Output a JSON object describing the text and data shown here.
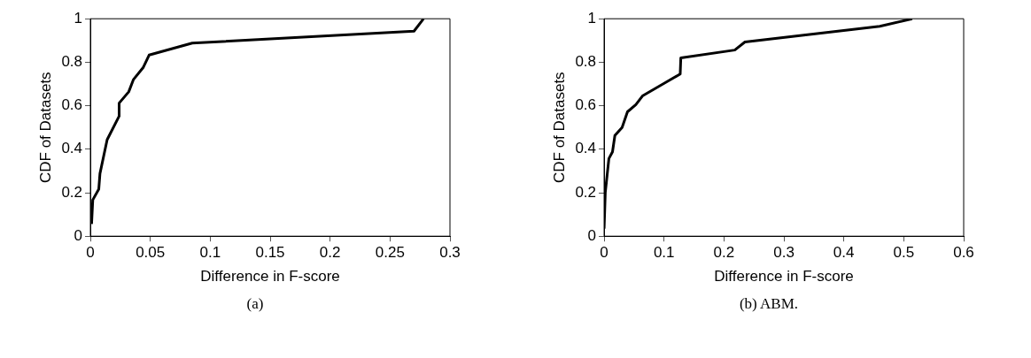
{
  "chart_data": [
    {
      "type": "line",
      "xlabel": "Difference in F-score",
      "ylabel": "CDF of Datasets",
      "xlim": [
        0,
        0.3
      ],
      "xticks": [
        0,
        0.05,
        0.1,
        0.15,
        0.2,
        0.25,
        0.3
      ],
      "ylim": [
        0,
        1
      ],
      "yticks": [
        0,
        0.2,
        0.4,
        0.6,
        0.8,
        1
      ],
      "grid": false,
      "legend": false,
      "marker": "none",
      "line_style": "solid",
      "annotations": [
        "(a)"
      ],
      "series": [
        {
          "color": "#000000",
          "x": [
            0.001,
            0.002,
            0.007,
            0.008,
            0.014,
            0.024,
            0.024,
            0.032,
            0.036,
            0.044,
            0.049,
            0.085,
            0.27,
            0.278
          ],
          "values": [
            0.056,
            0.167,
            0.216,
            0.288,
            0.444,
            0.552,
            0.612,
            0.664,
            0.721,
            0.775,
            0.833,
            0.888,
            0.943,
            1.0
          ]
        }
      ]
    },
    {
      "type": "line",
      "xlabel": "Difference in F-score",
      "ylabel": "CDF of Datasets",
      "xlim": [
        0,
        0.6
      ],
      "xticks": [
        0,
        0.1,
        0.2,
        0.3,
        0.4,
        0.5,
        0.6
      ],
      "ylim": [
        0,
        1
      ],
      "yticks": [
        0,
        0.2,
        0.4,
        0.6,
        0.8,
        1
      ],
      "grid": false,
      "legend": false,
      "marker": "none",
      "line_style": "solid",
      "annotations": [
        "(b) ABM."
      ],
      "series": [
        {
          "color": "#000000",
          "x": [
            0,
            0.002,
            0.008,
            0.014,
            0.018,
            0.03,
            0.039,
            0.053,
            0.064,
            0.104,
            0.127,
            0.128,
            0.218,
            0.235,
            0.46,
            0.514
          ],
          "values": [
            0.035,
            0.202,
            0.357,
            0.388,
            0.463,
            0.5,
            0.572,
            0.605,
            0.645,
            0.709,
            0.746,
            0.82,
            0.856,
            0.893,
            0.965,
            1.0
          ]
        }
      ]
    }
  ]
}
